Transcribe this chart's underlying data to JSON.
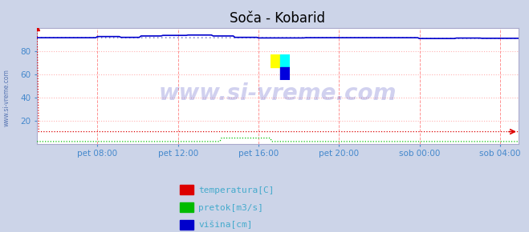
{
  "title": "Soča - Kobarid",
  "bg_color": "#ccd4e8",
  "plot_bg_color": "#ffffff",
  "xlim": [
    0,
    287
  ],
  "ylim": [
    0,
    100
  ],
  "yticks": [
    20,
    40,
    60,
    80
  ],
  "xtick_labels": [
    "pet 08:00",
    "pet 12:00",
    "pet 16:00",
    "pet 20:00",
    "sob 00:00",
    "sob 04:00"
  ],
  "xtick_positions": [
    36,
    84,
    132,
    180,
    228,
    276
  ],
  "n_points": 288,
  "temp_value": 10.5,
  "flow_base": 2.0,
  "flow_bump_start": 110,
  "flow_bump_end": 140,
  "flow_bump_val": 5.0,
  "height_avg": 91.5,
  "red_color": "#dd0000",
  "green_color": "#00bb00",
  "blue_color": "#0000cc",
  "blue_dot_color": "#3333aa",
  "vgrid_color": "#ff8888",
  "hgrid_color": "#ffaaaa",
  "watermark_color": "#0000aa",
  "watermark_alpha": 0.18,
  "legend_labels": [
    "temperatura[C]",
    "pretok[m3/s]",
    "višina[cm]"
  ],
  "legend_colors": [
    "#dd0000",
    "#00bb00",
    "#0000cc"
  ],
  "legend_text_color": "#44aacc",
  "title_fontsize": 12,
  "tick_color": "#4488cc",
  "sidebar_text": "www.si-vreme.com",
  "sidebar_color": "#4466aa"
}
